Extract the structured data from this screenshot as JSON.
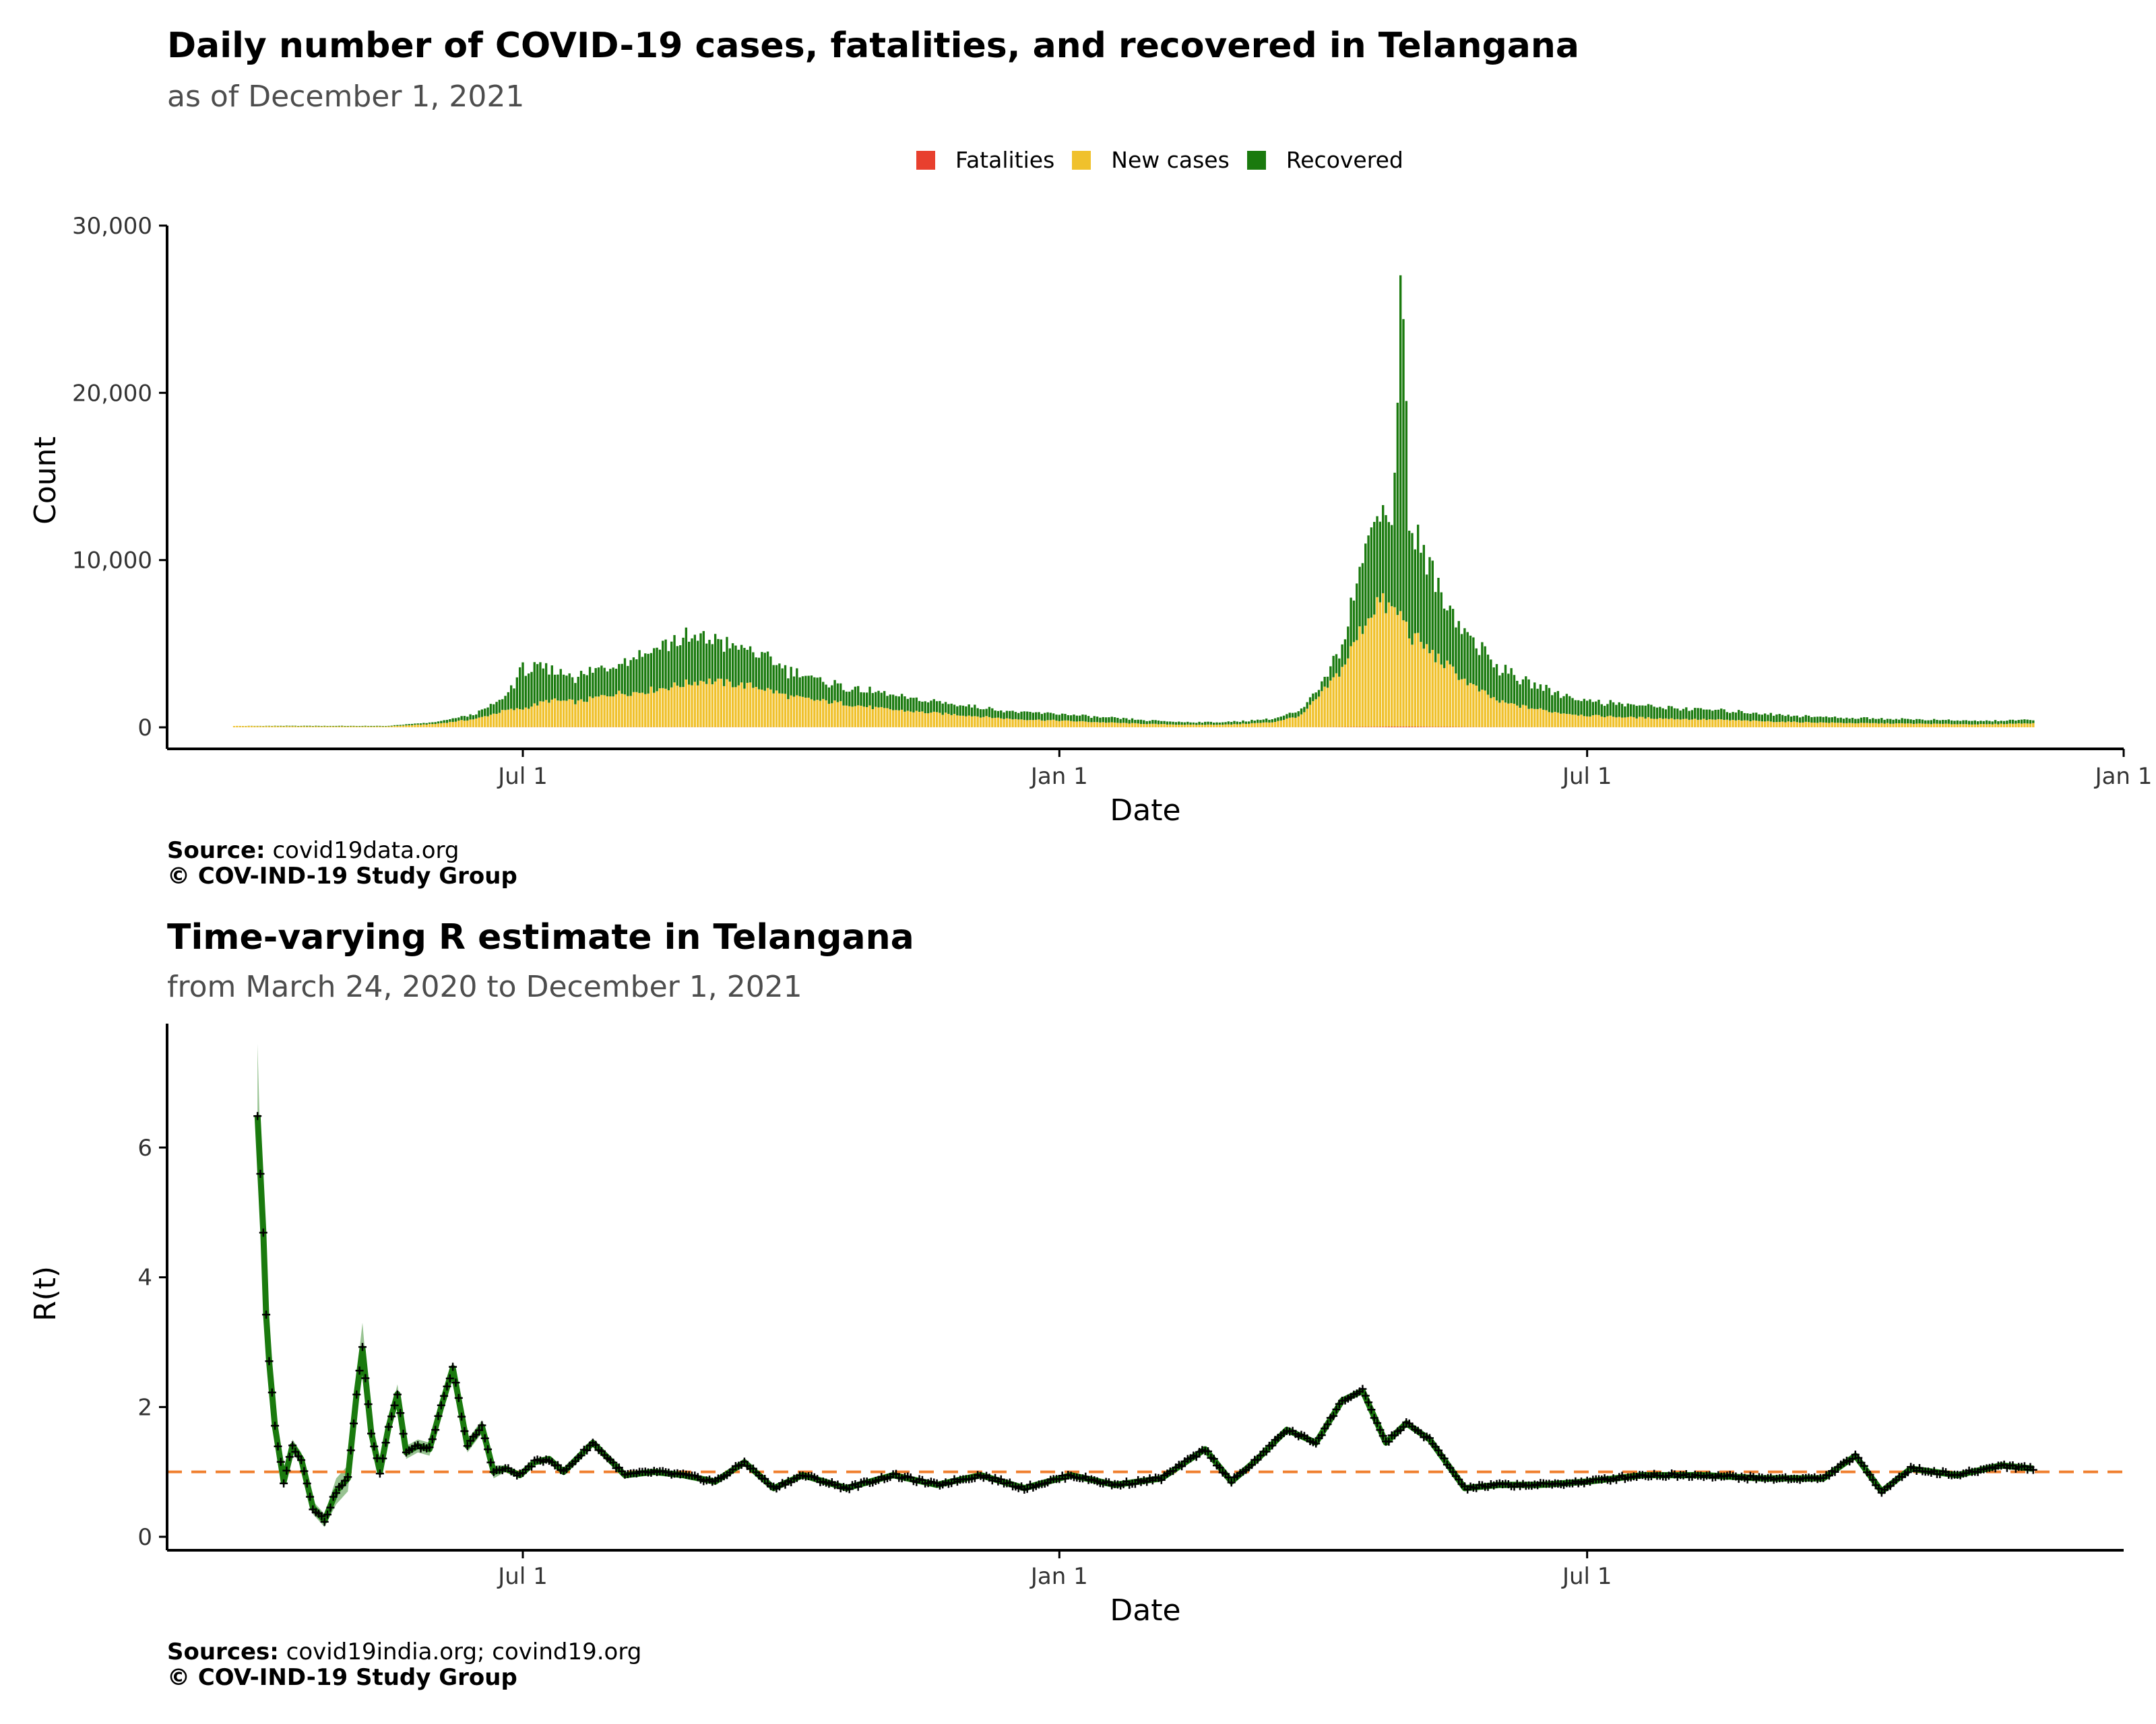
{
  "chart1": {
    "title": "Daily number of COVID-19 cases, fatalities, and recovered in Telangana",
    "subtitle": "as of December  1, 2021",
    "source_label": "Source:",
    "source_text": " covid19data.org",
    "copyright": "© COV-IND-19 Study Group"
  },
  "chart2": {
    "title": "Time-varying R estimate in Telangana",
    "subtitle": "from March 24, 2020 to December  1, 2021",
    "source_label": "Sources:",
    "source_text": " covid19india.org; covind19.org",
    "copyright": "© COV-IND-19 Study Group"
  },
  "colors": {
    "fatalities": "#e8402e",
    "new_cases": "#f0c12c",
    "recovered": "#1a7a0e",
    "reference_line": "#f08030",
    "rt_line": "#1a7a0e",
    "rt_points": "#000000"
  },
  "chart_data": [
    {
      "type": "bar",
      "stacked": true,
      "title": "Daily number of COVID-19 cases, fatalities, and recovered in Telangana",
      "subtitle": "as of December  1, 2021",
      "xlabel": "Date",
      "ylabel": "Count",
      "ylim": [
        0,
        30000
      ],
      "yticks": [
        0,
        10000,
        20000,
        30000
      ],
      "ytick_labels": [
        "0",
        "10,000",
        "20,000",
        "30,000"
      ],
      "xlim": [
        "2020-03-01",
        "2022-01-01"
      ],
      "xticks": [
        "2020-07-01",
        "2021-01-01",
        "2021-07-01",
        "2022-01-01"
      ],
      "xtick_labels": [
        "Jul 1",
        "Jan 1",
        "Jul 1",
        "Jan 1"
      ],
      "legend": {
        "position": "top",
        "entries": [
          "Fatalities",
          "New cases",
          "Recovered"
        ]
      },
      "grid": false,
      "x": [
        "2020-03-24",
        "2020-04-15",
        "2020-05-15",
        "2020-06-01",
        "2020-06-15",
        "2020-06-25",
        "2020-07-01",
        "2020-07-10",
        "2020-07-20",
        "2020-08-01",
        "2020-08-10",
        "2020-08-20",
        "2020-09-01",
        "2020-09-10",
        "2020-09-20",
        "2020-10-01",
        "2020-10-10",
        "2020-10-20",
        "2020-11-01",
        "2020-11-15",
        "2020-12-01",
        "2020-12-15",
        "2021-01-01",
        "2021-01-15",
        "2021-02-01",
        "2021-02-15",
        "2021-03-01",
        "2021-03-15",
        "2021-03-25",
        "2021-04-01",
        "2021-04-08",
        "2021-04-15",
        "2021-04-20",
        "2021-04-25",
        "2021-04-29",
        "2021-05-01",
        "2021-05-05",
        "2021-05-10",
        "2021-05-15",
        "2021-05-20",
        "2021-05-25",
        "2021-06-01",
        "2021-06-10",
        "2021-06-20",
        "2021-07-01",
        "2021-07-15",
        "2021-08-01",
        "2021-08-15",
        "2021-09-01",
        "2021-09-15",
        "2021-10-01",
        "2021-10-15",
        "2021-11-01",
        "2021-11-15",
        "2021-12-01"
      ],
      "series": [
        {
          "name": "Fatalities",
          "values": [
            0,
            0,
            0,
            5,
            6,
            8,
            10,
            10,
            10,
            10,
            10,
            10,
            10,
            10,
            9,
            8,
            6,
            5,
            4,
            3,
            3,
            2,
            2,
            2,
            1,
            1,
            1,
            2,
            5,
            10,
            15,
            20,
            30,
            40,
            45,
            40,
            35,
            25,
            20,
            15,
            12,
            10,
            8,
            6,
            5,
            3,
            2,
            2,
            1,
            1,
            1,
            1,
            1,
            1,
            1
          ]
        },
        {
          "name": "New cases",
          "values": [
            80,
            60,
            50,
            200,
            500,
            1000,
            1100,
            1600,
            1500,
            2000,
            2100,
            2400,
            2800,
            2600,
            2400,
            1800,
            1600,
            1400,
            1100,
            900,
            700,
            500,
            400,
            300,
            200,
            150,
            170,
            300,
            700,
            2000,
            3500,
            6000,
            7500,
            7000,
            6500,
            5500,
            5000,
            4200,
            3500,
            2800,
            2200,
            1500,
            1200,
            900,
            700,
            600,
            500,
            450,
            350,
            300,
            250,
            230,
            200,
            180,
            250
          ]
        },
        {
          "name": "Recovered",
          "values": [
            0,
            30,
            30,
            100,
            300,
            800,
            2400,
            1800,
            1500,
            1800,
            2300,
            2700,
            2600,
            2300,
            2000,
            1500,
            1200,
            1000,
            900,
            700,
            600,
            450,
            400,
            300,
            200,
            150,
            150,
            200,
            300,
            500,
            1500,
            4000,
            6000,
            5000,
            21500,
            6000,
            5500,
            4500,
            3500,
            3000,
            2500,
            2000,
            1500,
            1200,
            900,
            750,
            650,
            550,
            450,
            350,
            300,
            270,
            220,
            200,
            200
          ]
        }
      ]
    },
    {
      "type": "line",
      "title": "Time-varying R estimate in Telangana",
      "subtitle": "from March 24, 2020 to December  1, 2021",
      "xlabel": "Date",
      "ylabel": "R(t)",
      "ylim": [
        -0.2,
        7.8
      ],
      "yticks": [
        0,
        2,
        4,
        6
      ],
      "ytick_labels": [
        "0",
        "2",
        "4",
        "6"
      ],
      "xlim": [
        "2020-03-01",
        "2022-01-01"
      ],
      "xticks": [
        "2020-07-01",
        "2021-01-01",
        "2021-07-01"
      ],
      "xtick_labels": [
        "Jul 1",
        "Jan 1",
        "Jul 1"
      ],
      "grid": false,
      "reference_line": 1,
      "x": [
        "2020-04-01",
        "2020-04-02",
        "2020-04-03",
        "2020-04-04",
        "2020-04-05",
        "2020-04-07",
        "2020-04-10",
        "2020-04-13",
        "2020-04-16",
        "2020-04-20",
        "2020-04-24",
        "2020-04-28",
        "2020-05-02",
        "2020-05-05",
        "2020-05-07",
        "2020-05-10",
        "2020-05-13",
        "2020-05-16",
        "2020-05-19",
        "2020-05-22",
        "2020-05-26",
        "2020-05-30",
        "2020-06-03",
        "2020-06-07",
        "2020-06-12",
        "2020-06-17",
        "2020-06-21",
        "2020-06-25",
        "2020-06-30",
        "2020-07-05",
        "2020-07-10",
        "2020-07-15",
        "2020-07-25",
        "2020-08-05",
        "2020-08-15",
        "2020-08-25",
        "2020-09-05",
        "2020-09-15",
        "2020-09-25",
        "2020-10-05",
        "2020-10-20",
        "2020-11-05",
        "2020-11-20",
        "2020-12-05",
        "2020-12-20",
        "2021-01-05",
        "2021-01-20",
        "2021-02-05",
        "2021-02-20",
        "2021-03-01",
        "2021-03-10",
        "2021-03-20",
        "2021-03-30",
        "2021-04-08",
        "2021-04-15",
        "2021-04-23",
        "2021-04-30",
        "2021-05-08",
        "2021-05-20",
        "2021-06-01",
        "2021-06-15",
        "2021-07-01",
        "2021-07-20",
        "2021-08-10",
        "2021-08-30",
        "2021-09-20",
        "2021-10-01",
        "2021-10-10",
        "2021-10-20",
        "2021-11-05",
        "2021-11-20",
        "2021-12-01"
      ],
      "values": [
        6.5,
        5.6,
        4.7,
        3.4,
        2.7,
        1.7,
        0.85,
        1.4,
        1.2,
        0.45,
        0.25,
        0.7,
        0.9,
        2.2,
        2.9,
        1.6,
        1.0,
        1.7,
        2.2,
        1.3,
        1.4,
        1.35,
        2.0,
        2.6,
        1.4,
        1.7,
        1.0,
        1.05,
        0.95,
        1.15,
        1.2,
        1.0,
        1.45,
        0.95,
        1.0,
        0.95,
        0.85,
        1.15,
        0.75,
        0.95,
        0.75,
        0.95,
        0.8,
        0.95,
        0.75,
        0.95,
        0.8,
        0.9,
        1.35,
        0.85,
        1.2,
        1.65,
        1.45,
        2.1,
        2.25,
        1.45,
        1.75,
        1.5,
        0.75,
        0.8,
        0.8,
        0.85,
        0.95,
        0.95,
        0.9,
        0.9,
        1.25,
        0.7,
        1.05,
        0.95,
        1.1,
        1.05
      ],
      "ci_upper": [
        7.6,
        6.0,
        5.0,
        3.6,
        2.8,
        1.8,
        0.95,
        1.5,
        1.3,
        0.55,
        0.35,
        0.9,
        1.1,
        2.5,
        3.3,
        1.75,
        1.1,
        1.8,
        2.35,
        1.4,
        1.5,
        1.45,
        2.1,
        2.7,
        1.5,
        1.8,
        1.1,
        1.1,
        1.0,
        1.2,
        1.25,
        1.05,
        1.5,
        1.0,
        1.05,
        1.0,
        0.9,
        1.2,
        0.8,
        1.0,
        0.8,
        1.0,
        0.85,
        1.0,
        0.8,
        1.0,
        0.85,
        0.95,
        1.4,
        0.9,
        1.25,
        1.7,
        1.5,
        2.15,
        2.3,
        1.5,
        1.8,
        1.55,
        0.8,
        0.85,
        0.85,
        0.9,
        1.0,
        1.0,
        0.95,
        0.95,
        1.3,
        0.75,
        1.1,
        1.0,
        1.15,
        1.1
      ],
      "ci_lower": [
        5.6,
        5.2,
        4.4,
        3.2,
        2.6,
        1.6,
        0.75,
        1.3,
        1.1,
        0.35,
        0.15,
        0.5,
        0.7,
        1.9,
        2.5,
        1.45,
        0.9,
        1.6,
        2.05,
        1.2,
        1.3,
        1.25,
        1.9,
        2.5,
        1.3,
        1.6,
        0.9,
        1.0,
        0.9,
        1.1,
        1.15,
        0.95,
        1.4,
        0.9,
        0.95,
        0.9,
        0.8,
        1.1,
        0.7,
        0.9,
        0.7,
        0.9,
        0.75,
        0.9,
        0.7,
        0.9,
        0.75,
        0.85,
        1.3,
        0.8,
        1.15,
        1.6,
        1.4,
        2.05,
        2.2,
        1.4,
        1.7,
        1.45,
        0.7,
        0.75,
        0.75,
        0.8,
        0.9,
        0.9,
        0.85,
        0.85,
        1.2,
        0.65,
        1.0,
        0.9,
        1.05,
        1.0
      ]
    }
  ]
}
